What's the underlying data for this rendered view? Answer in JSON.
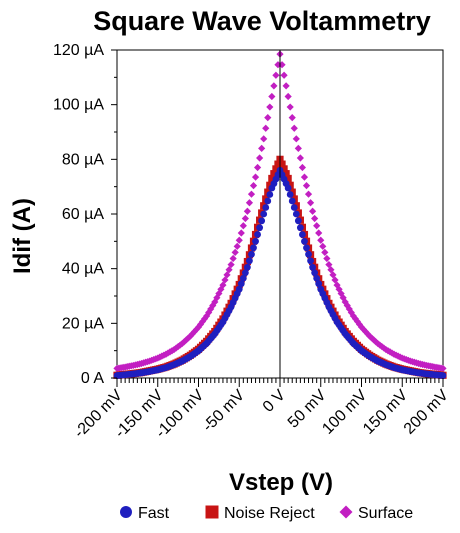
{
  "chart_data": {
    "type": "scatter",
    "title": "Square Wave Voltammetry",
    "xlabel": "Vstep (V)",
    "ylabel": "Idif (A)",
    "xlim": [
      -200,
      200
    ],
    "ylim": [
      0,
      120
    ],
    "x_unit": "mV",
    "y_unit": "µA",
    "x_ticks": [
      -200,
      -150,
      -100,
      -50,
      0,
      50,
      100,
      150,
      200
    ],
    "x_tick_labels": [
      "-200 mV",
      "-150 mV",
      "-100 mV",
      "-50 mV",
      "0 V",
      "50 mV",
      "100 mV",
      "150 mV",
      "200 mV"
    ],
    "y_ticks": [
      0,
      20,
      40,
      60,
      80,
      100,
      120
    ],
    "y_tick_labels": [
      "0 A",
      "20 µA",
      "40 µA",
      "60 µA",
      "80 µA",
      "100 µA",
      "120 µA"
    ],
    "legend_position": "bottom",
    "x": [
      -200,
      -190,
      -180,
      -170,
      -160,
      -150,
      -140,
      -130,
      -120,
      -110,
      -100,
      -90,
      -80,
      -70,
      -60,
      -50,
      -40,
      -30,
      -20,
      -10,
      0,
      10,
      20,
      30,
      40,
      50,
      60,
      70,
      80,
      90,
      100,
      110,
      120,
      130,
      140,
      150,
      160,
      170,
      180,
      190,
      200
    ],
    "series": [
      {
        "name": "Fast",
        "color": "#1f1fbf",
        "marker": "circle",
        "values": [
          0.9,
          1.2,
          1.5,
          1.9,
          2.4,
          3.0,
          3.8,
          4.9,
          6.2,
          7.9,
          10.0,
          12.7,
          16.2,
          20.5,
          26.0,
          32.5,
          40.5,
          50.0,
          60.0,
          69.5,
          76.0,
          69.5,
          60.0,
          50.0,
          40.5,
          32.5,
          26.0,
          20.5,
          16.2,
          12.7,
          10.0,
          7.9,
          6.2,
          4.9,
          3.8,
          3.0,
          2.4,
          1.9,
          1.5,
          1.2,
          0.9
        ]
      },
      {
        "name": "Noise Reject",
        "color": "#c81414",
        "marker": "square",
        "values": [
          1.0,
          1.3,
          1.6,
          2.0,
          2.6,
          3.2,
          4.0,
          5.1,
          6.5,
          8.3,
          10.5,
          13.4,
          17.0,
          21.6,
          27.3,
          34.2,
          42.6,
          52.5,
          63.0,
          73.0,
          80.0,
          73.0,
          63.0,
          52.5,
          42.6,
          34.2,
          27.3,
          21.6,
          17.0,
          13.4,
          10.5,
          8.3,
          6.5,
          5.1,
          4.0,
          3.2,
          2.6,
          2.0,
          1.6,
          1.3,
          1.0
        ]
      },
      {
        "name": "Surface",
        "color": "#c21fc2",
        "marker": "diamond",
        "values": [
          3.5,
          4.0,
          4.6,
          5.3,
          6.2,
          7.3,
          8.7,
          10.4,
          12.6,
          15.3,
          18.6,
          22.7,
          27.8,
          34.0,
          41.5,
          50.4,
          61.0,
          73.5,
          87.5,
          103.0,
          118.5,
          103.0,
          87.5,
          73.5,
          61.0,
          50.4,
          41.5,
          34.0,
          27.8,
          22.7,
          18.6,
          15.3,
          12.6,
          10.4,
          8.7,
          7.3,
          6.2,
          5.3,
          4.6,
          4.0,
          3.5
        ]
      }
    ]
  }
}
